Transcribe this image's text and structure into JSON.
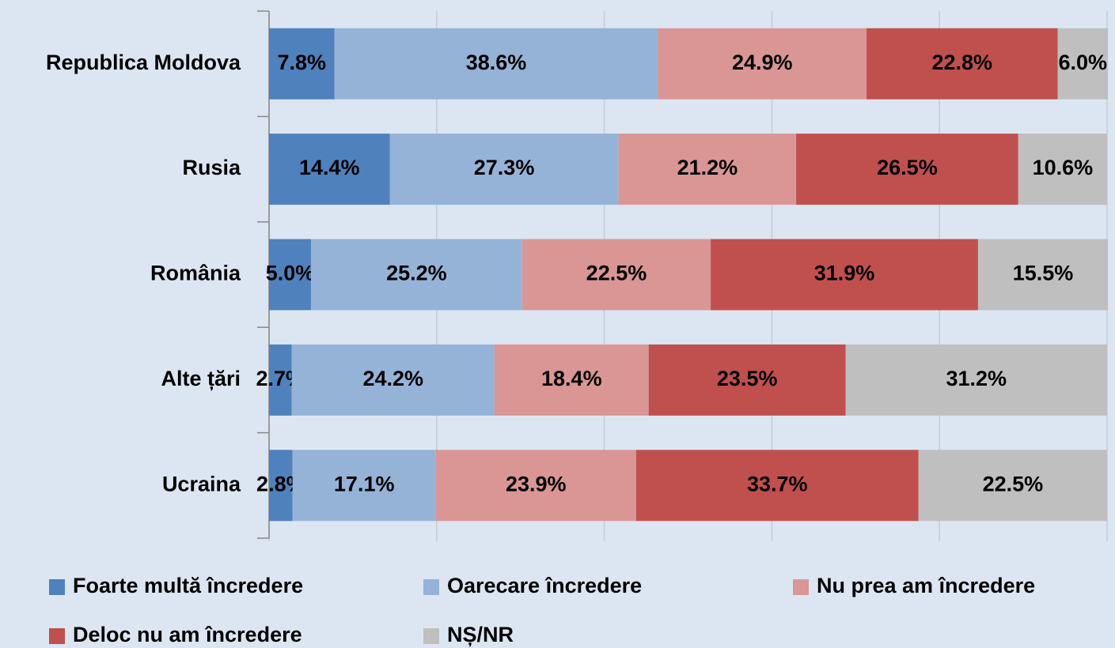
{
  "chart_data": {
    "type": "stacked_bar_horizontal",
    "categories": [
      "Republica Moldova",
      "Rusia",
      "România",
      "Alte țări",
      "Ucraina"
    ],
    "series": [
      {
        "name": "Foarte multă încredere",
        "color": "#4f81bd",
        "values": [
          7.8,
          14.4,
          5.0,
          2.7,
          2.8
        ],
        "value_labels": [
          "7.8%",
          "14.4%",
          "5.0%",
          "2.7%",
          "2.8%"
        ]
      },
      {
        "name": "Oarecare încredere",
        "color": "#95b3d7",
        "values": [
          38.6,
          27.3,
          25.2,
          24.2,
          17.1
        ],
        "value_labels": [
          "38.6%",
          "27.3%",
          "25.2%",
          "24.2%",
          "17.1%"
        ]
      },
      {
        "name": "Nu prea am încredere",
        "color": "#d99694",
        "values": [
          24.9,
          21.2,
          22.5,
          18.4,
          23.9
        ],
        "value_labels": [
          "24.9%",
          "21.2%",
          "22.5%",
          "18.4%",
          "23.9%"
        ]
      },
      {
        "name": "Deloc nu am încredere",
        "color": "#c0504d",
        "values": [
          22.8,
          26.5,
          31.9,
          23.5,
          33.7
        ],
        "value_labels": [
          "22.8%",
          "26.5%",
          "31.9%",
          "23.5%",
          "33.7%"
        ]
      },
      {
        "name": "NȘ/NR",
        "color": "#bfbfbf",
        "values": [
          6.0,
          10.6,
          15.5,
          31.2,
          22.5
        ],
        "value_labels": [
          "6.0%",
          "10.6%",
          "15.5%",
          "31.2%",
          "22.5%"
        ]
      }
    ],
    "xlim": [
      0,
      100
    ],
    "xticks": [
      0,
      20,
      40,
      60,
      80,
      100
    ],
    "grid": true,
    "legend": "bottom"
  }
}
